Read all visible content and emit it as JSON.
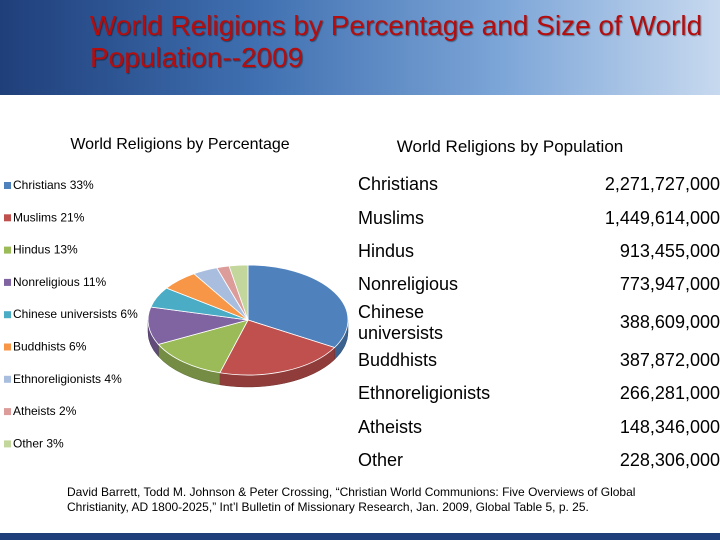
{
  "header": {
    "title": "World Religions by Percentage and Size of World Population--2009"
  },
  "chart_data": {
    "type": "pie",
    "title": "World Religions by Percentage",
    "categories": [
      "Christians",
      "Muslims",
      "Hindus",
      "Nonreligious",
      "Chinese universists",
      "Buddhists",
      "Ethnoreligionists",
      "Atheists",
      "Other"
    ],
    "values": [
      33,
      21,
      13,
      11,
      6,
      6,
      4,
      2,
      3
    ],
    "value_labels": [
      "33%",
      "21%",
      "13%",
      "11%",
      "6%",
      "6%",
      "4%",
      "2%",
      "3%"
    ],
    "colors": [
      "#4f81bd",
      "#c0504d",
      "#9bbb59",
      "#8064a2",
      "#4bacc6",
      "#f79646",
      "#a9bedf",
      "#dc9c9a",
      "#c3d69b"
    ]
  },
  "table": {
    "title": "World Religions by Population",
    "rows": [
      [
        "Christians",
        "2,271,727,000"
      ],
      [
        "Muslims",
        "1,449,614,000"
      ],
      [
        "Hindus",
        "913,455,000"
      ],
      [
        "Nonreligious",
        "773,947,000"
      ],
      [
        "Chinese universists",
        "388,609,000"
      ],
      [
        "Buddhists",
        "387,872,000"
      ],
      [
        "Ethnoreligionists",
        "266,281,000"
      ],
      [
        "Atheists",
        "148,346,000"
      ],
      [
        "Other",
        "228,306,000"
      ]
    ]
  },
  "footer": {
    "citation": "David Barrett, Todd M. Johnson & Peter Crossing, “Christian World Communions: Five Overviews of Global Christianity, AD 1800-2025,” Int’l Bulletin of Missionary Research, Jan. 2009, Global Table 5, p. 25."
  }
}
